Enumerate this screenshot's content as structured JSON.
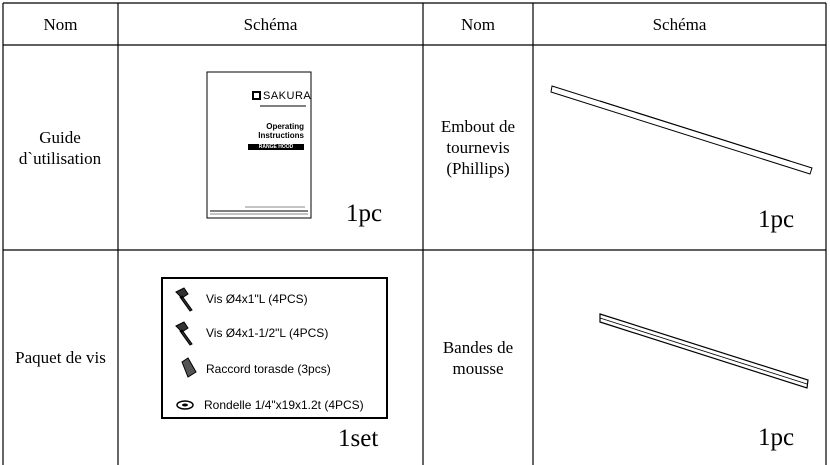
{
  "table": {
    "header": [
      "Nom",
      "Schéma",
      "Nom",
      "Schéma"
    ],
    "rows": [
      {
        "name": "Guide d`utilisation",
        "manual": {
          "brand": "SAKURA",
          "title": "Operating Instructions",
          "subtitle": "RANGE HOOD"
        },
        "quantity": "1pc",
        "name2": "Embout de tournevis (Phillips)",
        "quantity2": "1pc"
      },
      {
        "name": "Paquet de vis",
        "items": [
          "Vis Ø4x1\"L (4PCS)",
          "Vis Ø4x1-1/2\"L (4PCS)",
          "Raccord torasde (3pcs)",
          "Rondelle 1/4\"x19x1.2t (4PCS)"
        ],
        "quantity": "1set",
        "name2": "Bandes de mousse",
        "quantity2": "1pc"
      }
    ]
  }
}
